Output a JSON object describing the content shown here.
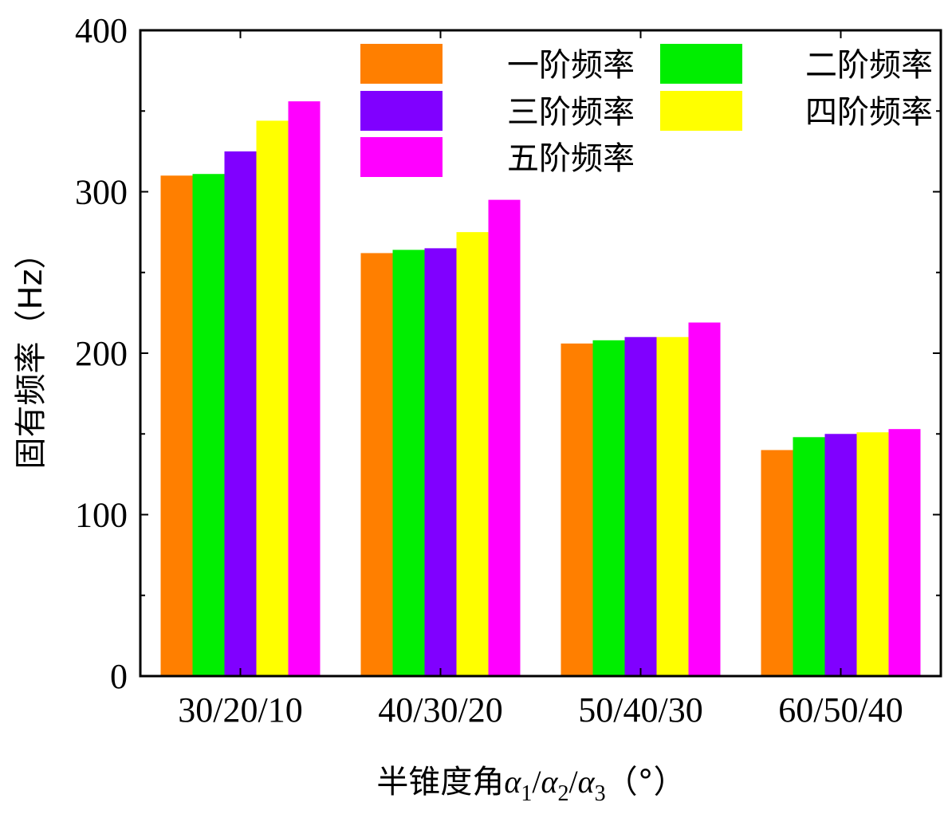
{
  "chart_data": {
    "type": "bar",
    "categories": [
      "30/20/10",
      "40/30/20",
      "50/40/30",
      "60/50/40"
    ],
    "series": [
      {
        "name": "一阶频率",
        "color": "#FF7F00",
        "values": [
          310,
          262,
          206,
          140
        ]
      },
      {
        "name": "二阶频率",
        "color": "#00EE00",
        "values": [
          311,
          264,
          208,
          148
        ]
      },
      {
        "name": "三阶频率",
        "color": "#8000FF",
        "values": [
          325,
          265,
          210,
          150
        ]
      },
      {
        "name": "四阶频率",
        "color": "#FFFF00",
        "values": [
          344,
          275,
          210,
          151
        ]
      },
      {
        "name": "五阶频率",
        "color": "#FF00FF",
        "values": [
          356,
          295,
          219,
          153
        ]
      }
    ],
    "ylim": [
      0,
      400
    ],
    "yticks": [
      0,
      100,
      200,
      300,
      400
    ],
    "ylabel": "固有频率（Hz）",
    "xlabel": {
      "prefix": "半锥度角",
      "symbol": "α",
      "subscripts": [
        "1",
        "2",
        "3"
      ],
      "separator": "/",
      "unit": "（°）"
    },
    "legend_position": "top-right"
  }
}
